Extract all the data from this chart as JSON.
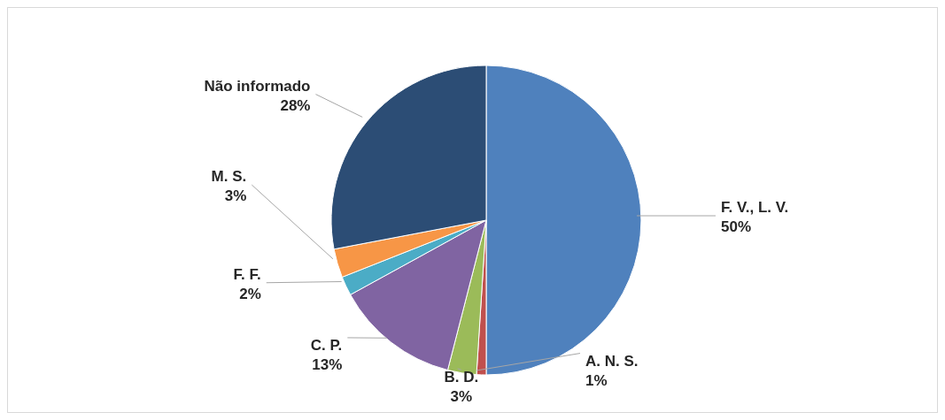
{
  "chart_data": {
    "type": "pie",
    "categories": [
      "F. V., L. V.",
      "A. N. S.",
      "B. D.",
      "C. P.",
      "F. F.",
      "M. S.",
      "Não informado"
    ],
    "values": [
      50,
      1,
      3,
      13,
      2,
      3,
      28
    ],
    "value_labels": [
      "50%",
      "1%",
      "3%",
      "13%",
      "2%",
      "3%",
      "28%"
    ],
    "colors": [
      "#4f81bd",
      "#c0504d",
      "#9bbb59",
      "#8064a2",
      "#4bacc6",
      "#f79646",
      "#2c4d75"
    ],
    "legend": false
  }
}
